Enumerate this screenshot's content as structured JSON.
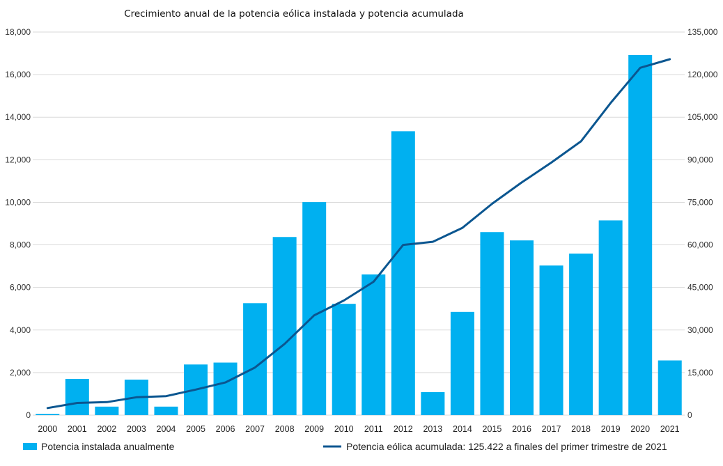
{
  "chart_data": {
    "type": "bar",
    "title": "Crecimiento anual de la potencia eólica instalada y potencia acumulada",
    "categories": [
      "2000",
      "2001",
      "2002",
      "2003",
      "2004",
      "2005",
      "2006",
      "2007",
      "2008",
      "2009",
      "2010",
      "2011",
      "2012",
      "2013",
      "2014",
      "2015",
      "2016",
      "2017",
      "2018",
      "2019",
      "2020",
      "2021"
    ],
    "series": [
      {
        "name": "Potencia instalada anualmente",
        "type": "bar",
        "axis": "left",
        "color": "#00b0f0",
        "values": [
          60,
          1700,
          400,
          1670,
          400,
          2380,
          2470,
          5260,
          8370,
          10010,
          5230,
          6610,
          13340,
          1080,
          4850,
          8600,
          8210,
          7030,
          7590,
          9150,
          16920,
          2570
        ]
      },
      {
        "name": "Potencia eólica acumulada: 125.422 a finales del primer trimestre de 2021",
        "type": "line",
        "axis": "right",
        "color": "#0b5690",
        "values": [
          2500,
          4300,
          4600,
          6300,
          6700,
          9000,
          11500,
          16800,
          25100,
          35200,
          40400,
          47000,
          60000,
          61100,
          66000,
          74500,
          82000,
          89000,
          96500,
          110000,
          122400,
          125422
        ]
      }
    ],
    "y_left": {
      "min": 0,
      "max": 18000,
      "ticks": [
        "0",
        "2,000",
        "4,000",
        "6,000",
        "8,000",
        "10,000",
        "12,000",
        "14,000",
        "16,000",
        "18,000"
      ]
    },
    "y_right": {
      "min": 0,
      "max": 135000,
      "ticks": [
        "0",
        "15,000",
        "30,000",
        "45,000",
        "60,000",
        "75,000",
        "90,000",
        "105,000",
        "120,000",
        "135,000"
      ]
    },
    "grid": true,
    "legend_position": "bottom"
  }
}
